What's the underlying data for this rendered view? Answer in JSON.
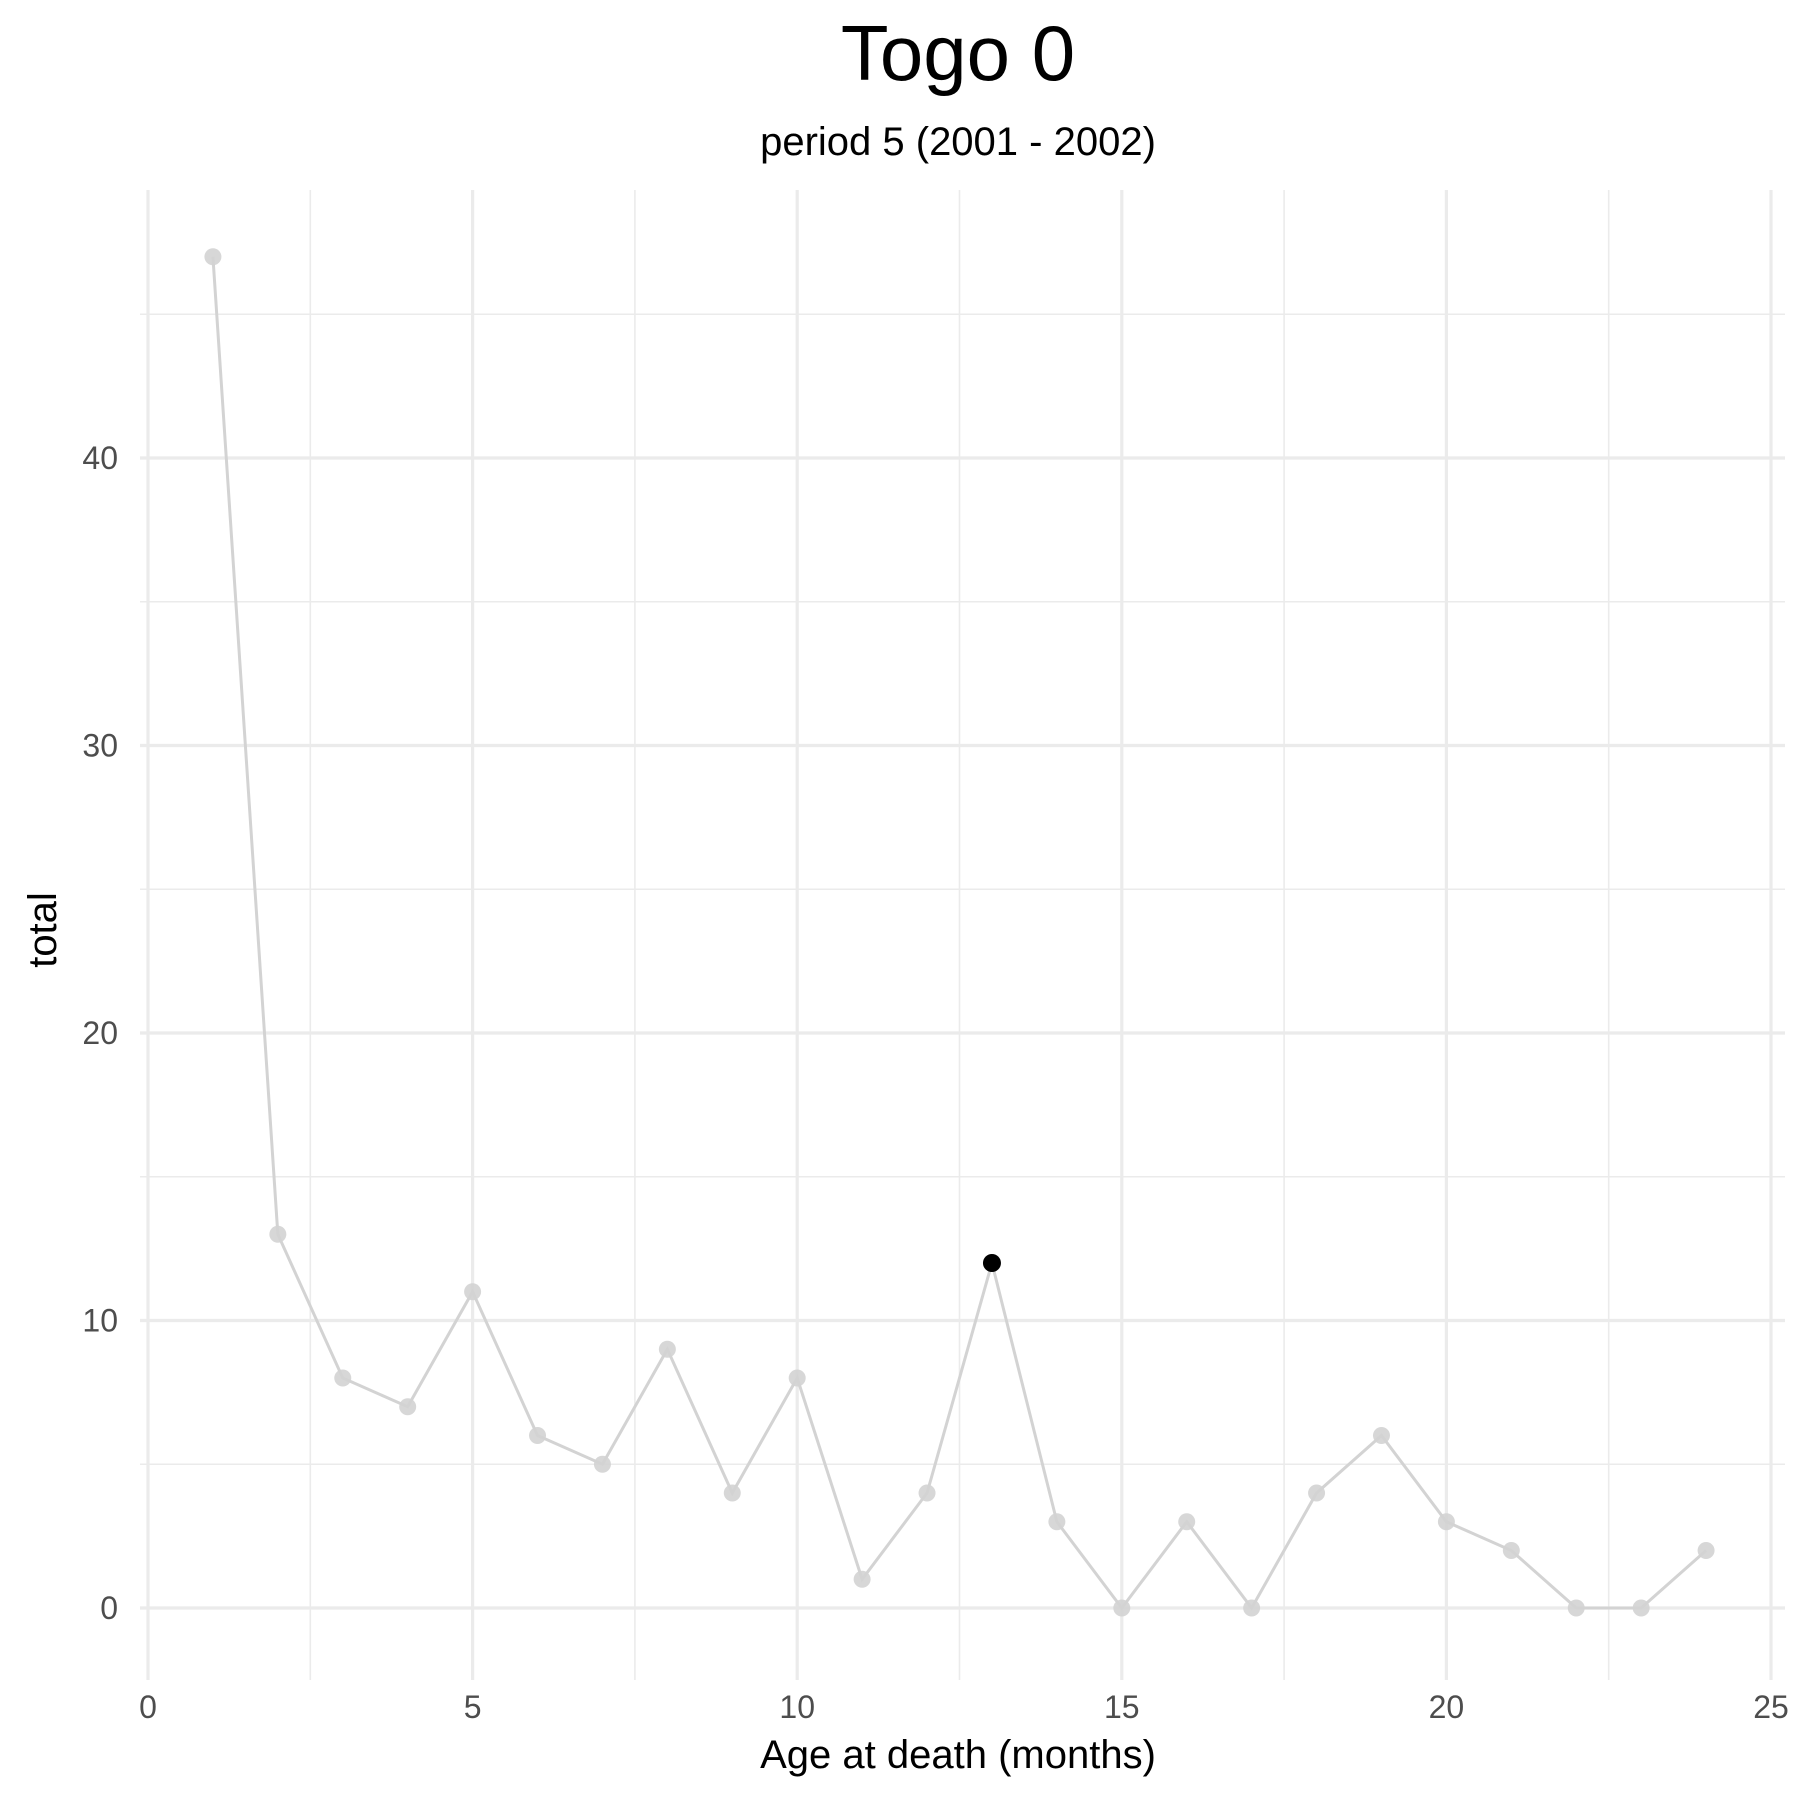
{
  "chart_data": {
    "type": "line",
    "title": "Togo 0",
    "subtitle": "period 5 (2001 - 2002)",
    "xlabel": "Age at death (months)",
    "ylabel": "total",
    "xlim": [
      0,
      25
    ],
    "ylim": [
      -1.5,
      49.3
    ],
    "x_ticks": [
      0,
      5,
      10,
      15,
      20,
      25
    ],
    "y_ticks": [
      0,
      10,
      20,
      30,
      40
    ],
    "x_minor": [
      2.5,
      7.5,
      12.5,
      17.5,
      22.5
    ],
    "y_minor": [
      5,
      15,
      25,
      35,
      45
    ],
    "grid": true,
    "legend": "none",
    "series": [
      {
        "x": [
          1,
          2,
          3,
          4,
          5,
          6,
          7,
          8,
          9,
          10,
          11,
          12,
          13,
          14,
          15,
          16,
          17,
          18,
          19,
          20,
          21,
          22,
          23,
          24
        ],
        "values": [
          47,
          13,
          8,
          7,
          11,
          6,
          5,
          9,
          4,
          8,
          1,
          4,
          12,
          3,
          0,
          3,
          0,
          4,
          6,
          3,
          2,
          0,
          0,
          2
        ],
        "color": "#d3d3d3"
      }
    ],
    "highlight": {
      "x": 13,
      "y": 12,
      "color": "#000000"
    }
  }
}
